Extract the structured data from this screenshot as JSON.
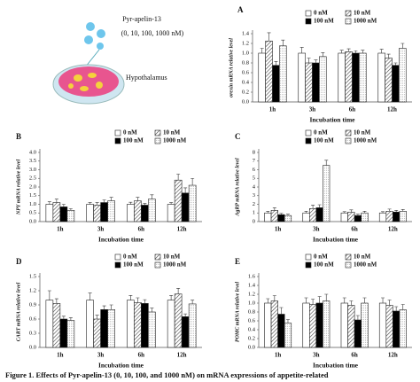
{
  "diagram": {
    "compound": "Pyr-apelin-13",
    "doses": "(0, 10, 100, 1000 nM)",
    "tissue": "Hypothalamus"
  },
  "caption": "Figure 1. Effects of Pyr-apelin-13 (0, 10, 100, and 1000 nM) on mRNA expressions of appetite-related",
  "chart_data": [
    {
      "type": "bar",
      "panel": "A",
      "y_label": "orexin mRNA relative level",
      "x_label": "Incubation time",
      "categories": [
        "1h",
        "3h",
        "6h",
        "12h"
      ],
      "series": [
        {
          "name": "0 nM",
          "color": "#ffffff",
          "pattern": "none",
          "values": [
            1.0,
            1.0,
            1.0,
            1.0
          ],
          "errors": [
            0.1,
            0.12,
            0.06,
            0.08
          ]
        },
        {
          "name": "10 nM",
          "color": "#bdbdbd",
          "pattern": "hatch",
          "values": [
            1.25,
            0.8,
            1.03,
            0.9
          ],
          "errors": [
            0.17,
            0.1,
            0.06,
            0.08
          ]
        },
        {
          "name": "100 nM",
          "color": "#000000",
          "pattern": "none",
          "values": [
            0.75,
            0.8,
            1.0,
            0.75
          ],
          "errors": [
            0.08,
            0.06,
            0.05,
            0.05
          ]
        },
        {
          "name": "1000 nM",
          "color": "#eeeeee",
          "pattern": "dots",
          "values": [
            1.15,
            0.93,
            1.0,
            1.1
          ],
          "errors": [
            0.12,
            0.08,
            0.06,
            0.1
          ]
        }
      ],
      "ylim": [
        0,
        1.4
      ],
      "yticks": [
        {
          "value": 0,
          "label": "0.0"
        },
        0.2,
        0.4,
        0.6,
        0.8,
        {
          "value": 1,
          "label": "1.0"
        },
        1.2,
        1.4
      ]
    },
    {
      "type": "bar",
      "panel": "B",
      "y_label": "NPY mRNA relative level",
      "x_label": "Incubation time",
      "categories": [
        "1h",
        "3h",
        "6h",
        "12h"
      ],
      "series": [
        {
          "name": "0 nM",
          "color": "#ffffff",
          "pattern": "none",
          "values": [
            1.0,
            1.0,
            1.0,
            1.0
          ],
          "errors": [
            0.15,
            0.1,
            0.12,
            0.1
          ]
        },
        {
          "name": "10 nM",
          "color": "#bdbdbd",
          "pattern": "hatch",
          "values": [
            1.1,
            0.95,
            1.2,
            2.4
          ],
          "errors": [
            0.2,
            0.15,
            0.2,
            0.35
          ]
        },
        {
          "name": "100 nM",
          "color": "#000000",
          "pattern": "none",
          "values": [
            0.85,
            1.1,
            0.95,
            1.65
          ],
          "errors": [
            0.15,
            0.15,
            0.1,
            0.3
          ]
        },
        {
          "name": "1000 nM",
          "color": "#eeeeee",
          "pattern": "dots",
          "values": [
            0.65,
            1.2,
            1.3,
            2.1
          ],
          "errors": [
            0.1,
            0.2,
            0.25,
            0.4
          ]
        }
      ],
      "ylim": [
        0,
        4
      ],
      "yticks": [
        {
          "value": 0,
          "label": "0.0"
        },
        0.5,
        {
          "value": 1,
          "label": "1.0"
        },
        1.5,
        {
          "value": 2,
          "label": "2.0"
        },
        2.5,
        {
          "value": 3,
          "label": "3.0"
        },
        3.5,
        {
          "value": 4,
          "label": "4.0"
        }
      ]
    },
    {
      "type": "bar",
      "panel": "C",
      "y_label": "AgRP mRNA relative level",
      "x_label": "Incubation time",
      "categories": [
        "1h",
        "3h",
        "6h",
        "12h"
      ],
      "series": [
        {
          "name": "0 nM",
          "color": "#ffffff",
          "pattern": "none",
          "values": [
            1.0,
            1.0,
            1.0,
            1.0
          ],
          "errors": [
            0.2,
            0.2,
            0.15,
            0.15
          ]
        },
        {
          "name": "10 nM",
          "color": "#bdbdbd",
          "pattern": "hatch",
          "values": [
            1.3,
            1.5,
            1.1,
            1.2
          ],
          "errors": [
            0.3,
            0.4,
            0.25,
            0.25
          ]
        },
        {
          "name": "100 nM",
          "color": "#000000",
          "pattern": "none",
          "values": [
            0.8,
            1.6,
            0.7,
            1.1
          ],
          "errors": [
            0.15,
            0.35,
            0.15,
            0.2
          ]
        },
        {
          "name": "1000 nM",
          "color": "#eeeeee",
          "pattern": "dots",
          "values": [
            0.7,
            6.5,
            1.0,
            1.2
          ],
          "errors": [
            0.15,
            0.6,
            0.2,
            0.2
          ]
        }
      ],
      "ylim": [
        0,
        8
      ],
      "yticks": [
        0,
        1,
        2,
        3,
        4,
        5,
        6,
        7,
        8
      ]
    },
    {
      "type": "bar",
      "panel": "D",
      "y_label": "CART mRNA relative level",
      "x_label": "Incubation time",
      "categories": [
        "1h",
        "3h",
        "6h",
        "12h"
      ],
      "series": [
        {
          "name": "0 nM",
          "color": "#ffffff",
          "pattern": "none",
          "values": [
            1.0,
            1.0,
            1.0,
            1.0
          ],
          "errors": [
            0.2,
            0.15,
            0.1,
            0.1
          ]
        },
        {
          "name": "10 nM",
          "color": "#bdbdbd",
          "pattern": "hatch",
          "values": [
            0.93,
            0.6,
            0.95,
            1.13
          ],
          "errors": [
            0.1,
            0.08,
            0.1,
            0.12
          ]
        },
        {
          "name": "100 nM",
          "color": "#000000",
          "pattern": "none",
          "values": [
            0.6,
            0.8,
            0.93,
            0.65
          ],
          "errors": [
            0.06,
            0.08,
            0.08,
            0.06
          ]
        },
        {
          "name": "1000 nM",
          "color": "#eeeeee",
          "pattern": "dots",
          "values": [
            0.57,
            0.8,
            0.75,
            0.92
          ],
          "errors": [
            0.06,
            0.1,
            0.08,
            0.08
          ]
        }
      ],
      "ylim": [
        0,
        1.5
      ],
      "yticks": [
        {
          "value": 0,
          "label": "0.0"
        },
        0.3,
        0.6,
        0.9,
        1.2,
        1.5
      ]
    },
    {
      "type": "bar",
      "panel": "E",
      "y_label": "POMC mRNA relative level",
      "x_label": "Incubation time",
      "categories": [
        "1h",
        "3h",
        "6h",
        "12h"
      ],
      "series": [
        {
          "name": "0 nM",
          "color": "#ffffff",
          "pattern": "none",
          "values": [
            1.0,
            1.0,
            1.0,
            1.0
          ],
          "errors": [
            0.1,
            0.12,
            0.12,
            0.12
          ]
        },
        {
          "name": "10 nM",
          "color": "#bdbdbd",
          "pattern": "hatch",
          "values": [
            1.05,
            0.97,
            0.95,
            0.95
          ],
          "errors": [
            0.12,
            0.12,
            0.1,
            0.12
          ]
        },
        {
          "name": "100 nM",
          "color": "#000000",
          "pattern": "none",
          "values": [
            0.75,
            1.0,
            0.62,
            0.82
          ],
          "errors": [
            0.15,
            0.15,
            0.1,
            0.1
          ]
        },
        {
          "name": "1000 nM",
          "color": "#eeeeee",
          "pattern": "dots",
          "values": [
            0.55,
            1.05,
            1.0,
            0.85
          ],
          "errors": [
            0.08,
            0.15,
            0.12,
            0.12
          ]
        }
      ],
      "ylim": [
        0,
        1.6
      ],
      "yticks": [
        {
          "value": 0,
          "label": "0.0"
        },
        0.2,
        0.4,
        0.6,
        0.8,
        {
          "value": 1,
          "label": "1.0"
        },
        1.2,
        1.4,
        1.6
      ]
    }
  ]
}
